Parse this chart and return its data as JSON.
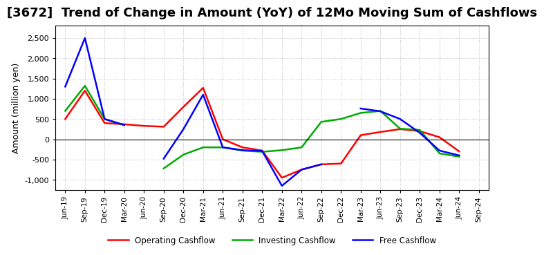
{
  "title": "[3672]  Trend of Change in Amount (YoY) of 12Mo Moving Sum of Cashflows",
  "ylabel": "Amount (million yen)",
  "x_labels": [
    "Jun-19",
    "Sep-19",
    "Dec-19",
    "Mar-20",
    "Jun-20",
    "Sep-20",
    "Dec-20",
    "Mar-21",
    "Jun-21",
    "Sep-21",
    "Dec-21",
    "Mar-22",
    "Jun-22",
    "Sep-22",
    "Dec-22",
    "Mar-23",
    "Jun-23",
    "Sep-23",
    "Dec-23",
    "Mar-24",
    "Jun-24",
    "Sep-24"
  ],
  "operating": [
    500,
    1200,
    400,
    370,
    330,
    310,
    800,
    1270,
    0,
    -200,
    -280,
    -950,
    -750,
    -620,
    -600,
    100,
    180,
    250,
    200,
    50,
    -300,
    null
  ],
  "investing": [
    700,
    1320,
    500,
    350,
    null,
    -720,
    -380,
    -200,
    -200,
    -280,
    -310,
    -270,
    -200,
    430,
    500,
    650,
    700,
    260,
    230,
    -350,
    -430,
    null
  ],
  "free": [
    1300,
    2500,
    500,
    350,
    null,
    -480,
    250,
    1100,
    -200,
    -270,
    -290,
    -1150,
    -750,
    -620,
    null,
    760,
    690,
    500,
    160,
    -280,
    -400,
    null
  ],
  "operating_color": "#ff0000",
  "investing_color": "#00aa00",
  "free_color": "#0000ff",
  "ylim": [
    -1250,
    2800
  ],
  "yticks": [
    -1000,
    -500,
    0,
    500,
    1000,
    1500,
    2000,
    2500
  ],
  "background_color": "#ffffff",
  "grid_color": "#aaaaaa",
  "title_fontsize": 13,
  "legend_labels": [
    "Operating Cashflow",
    "Investing Cashflow",
    "Free Cashflow"
  ]
}
